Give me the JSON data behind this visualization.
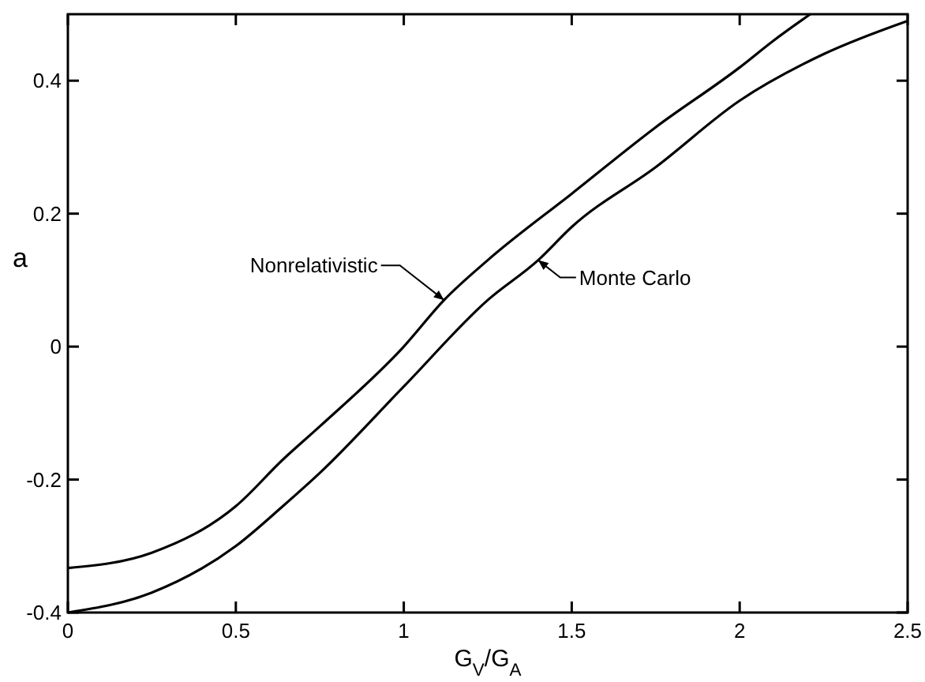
{
  "chart_data": {
    "type": "line",
    "xlabel": "G$_{V}$/G$_{A}$",
    "ylabel": "a",
    "xlim": [
      0,
      2.5
    ],
    "ylim": [
      -0.4,
      0.5
    ],
    "xticks": [
      0,
      0.5,
      1,
      1.5,
      2,
      2.5
    ],
    "yticks": [
      -0.4,
      -0.2,
      0,
      0.2,
      0.4
    ],
    "grid": false,
    "line_style": "solid",
    "series": [
      {
        "color": "#000000",
        "x": [
          0,
          0.25,
          0.5,
          0.64,
          0.75,
          1.0,
          1.12,
          1.25,
          1.5,
          1.75,
          2.0,
          2.1,
          2.21
        ],
        "values": [
          -0.333,
          -0.31,
          -0.24,
          -0.17,
          -0.12,
          0.0,
          0.07,
          0.13,
          0.23,
          0.33,
          0.42,
          0.46,
          0.5
        ]
      },
      {
        "color": "#000000",
        "x": [
          0,
          0.25,
          0.5,
          0.64,
          0.75,
          1.0,
          1.25,
          1.4,
          1.5,
          1.75,
          2.0,
          2.25,
          2.5
        ],
        "values": [
          -0.4,
          -0.37,
          -0.3,
          -0.24,
          -0.19,
          -0.06,
          0.07,
          0.13,
          0.18,
          0.27,
          0.37,
          0.44,
          0.49
        ]
      }
    ],
    "annotations": [
      {
        "text": "Nonrelativistic",
        "x": 1.12,
        "y": 0.07
      },
      {
        "text": "Monte Carlo",
        "x": 1.4,
        "y": 0.13
      }
    ]
  }
}
